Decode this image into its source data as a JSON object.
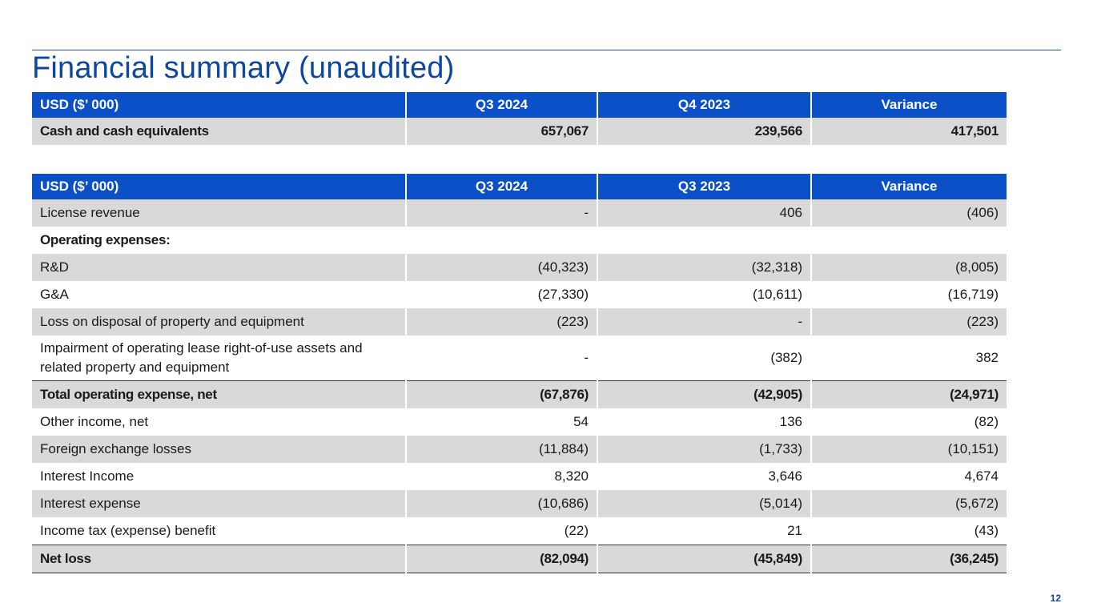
{
  "slide": {
    "title": "Financial summary (unaudited)",
    "page_number": "12"
  },
  "cash_table": {
    "headers": [
      "USD ($’ 000)",
      "Q3 2024",
      "Q4 2023",
      "Variance"
    ],
    "rows": [
      [
        "Cash and cash equivalents",
        "657,067",
        "239,566",
        "417,501"
      ]
    ]
  },
  "ops_table": {
    "headers": [
      "USD ($’ 000)",
      "Q3 2024",
      "Q3 2023",
      "Variance"
    ],
    "rows": [
      [
        "License revenue",
        "-",
        "406",
        "(406)"
      ],
      [
        "Operating expenses:",
        "",
        "",
        ""
      ],
      [
        "R&D",
        "(40,323)",
        "(32,318)",
        "(8,005)"
      ],
      [
        "G&A",
        "(27,330)",
        "(10,611)",
        "(16,719)"
      ],
      [
        "Loss on disposal of property and equipment",
        "(223)",
        "-",
        "(223)"
      ],
      [
        "Impairment of operating lease right-of-use assets and related property and equipment",
        "-",
        "(382)",
        "382"
      ],
      [
        "Total operating expense, net",
        "(67,876)",
        "(42,905)",
        "(24,971)"
      ],
      [
        "Other income, net",
        "54",
        "136",
        "(82)"
      ],
      [
        "Foreign exchange losses",
        "(11,884)",
        "(1,733)",
        "(10,151)"
      ],
      [
        "Interest Income",
        "8,320",
        "3,646",
        "4,674"
      ],
      [
        "Interest expense",
        "(10,686)",
        "(5,014)",
        "(5,672)"
      ],
      [
        "Income tax (expense) benefit",
        "(22)",
        "21",
        "(43)"
      ],
      [
        "Net loss",
        "(82,094)",
        "(45,849)",
        "(36,245)"
      ]
    ]
  }
}
